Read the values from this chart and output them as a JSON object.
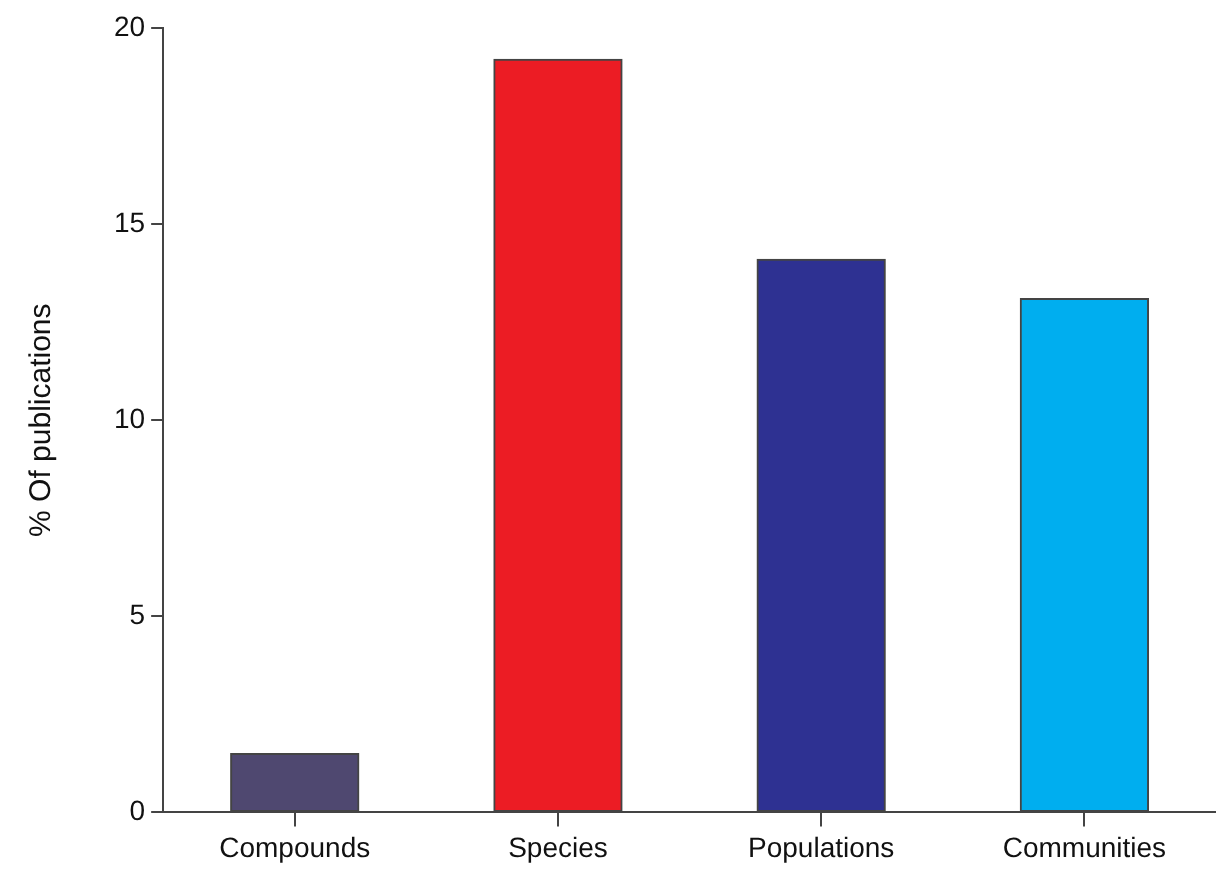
{
  "chart_data": {
    "type": "bar",
    "ylabel": "% Of publications",
    "categories": [
      "Compounds",
      "Species",
      "Populations",
      "Communities"
    ],
    "values": [
      1.5,
      19.2,
      14.1,
      13.1
    ],
    "colors": [
      "#4f4870",
      "#ec1c24",
      "#2e3192",
      "#00aeef"
    ],
    "ylim": [
      0,
      20
    ],
    "yticks": [
      0,
      5,
      10,
      15,
      20
    ],
    "grid": false,
    "legend": false
  }
}
